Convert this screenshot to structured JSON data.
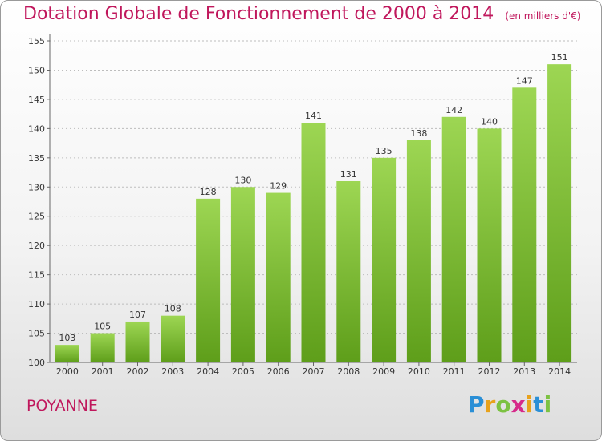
{
  "header": {
    "title": "Dotation Globale de Fonctionnement de 2000 à 2014",
    "unit": "(en milliers d'€)"
  },
  "footer": {
    "commune": "POYANNE",
    "logo_letters": [
      "P",
      "r",
      "o",
      "x",
      "i",
      "t",
      "i"
    ],
    "logo_colors": [
      "#2a8fd6",
      "#e8a21c",
      "#7cc242",
      "#d62a8a",
      "#e8a21c",
      "#2a8fd6",
      "#7cc242"
    ]
  },
  "chart_data": {
    "type": "bar",
    "title": "Dotation Globale de Fonctionnement de 2000 à 2014",
    "subtitle": "(en milliers d'€)",
    "categories": [
      "2000",
      "2001",
      "2002",
      "2003",
      "2004",
      "2005",
      "2006",
      "2007",
      "2008",
      "2009",
      "2010",
      "2011",
      "2012",
      "2013",
      "2014"
    ],
    "values": [
      103,
      105,
      107,
      108,
      128,
      130,
      129,
      141,
      131,
      135,
      138,
      142,
      140,
      147,
      151
    ],
    "ylim": [
      100,
      155
    ],
    "yticks": [
      100,
      105,
      110,
      115,
      120,
      125,
      130,
      135,
      140,
      145,
      150,
      155
    ],
    "grid": true,
    "bar_color_top": "#9dd653",
    "bar_color_bottom": "#5e9e1a"
  }
}
